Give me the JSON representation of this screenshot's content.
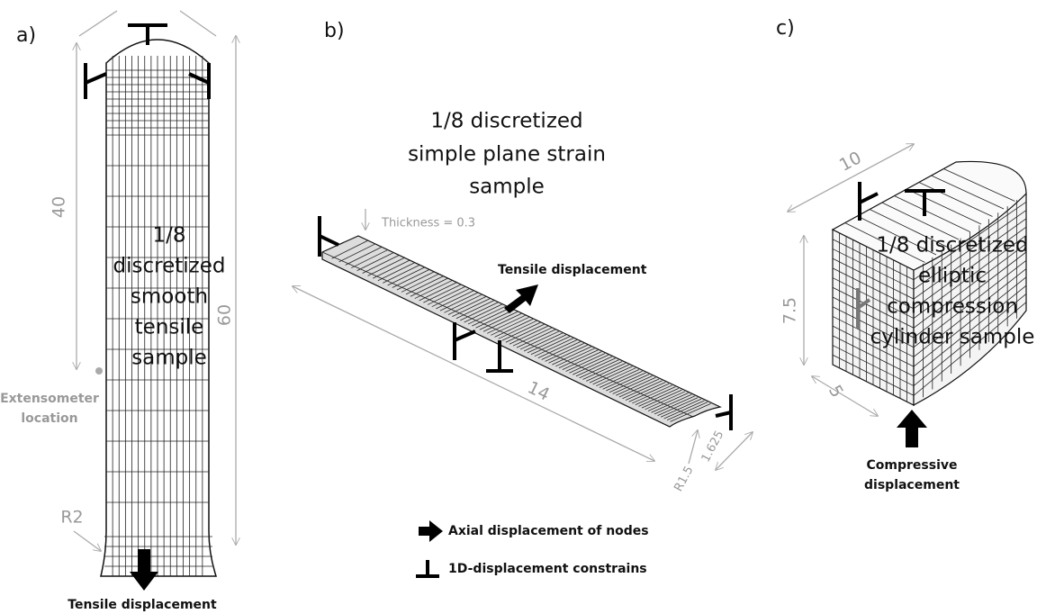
{
  "panels": [
    {
      "tag": "a)",
      "dimensions": [
        "40",
        "60"
      ],
      "label_lines": [
        "1/8",
        "discretized",
        "smooth",
        "tensile",
        "sample"
      ],
      "extensometer_lines": [
        "Extensometer",
        "location"
      ],
      "radius": "R2",
      "load": "Tensile displacement"
    },
    {
      "tag": "b)",
      "label_lines": [
        "1/8 discretized",
        "simple plane strain",
        "sample"
      ],
      "thickness": "Thickness = 0.3",
      "load": "Tensile displacement",
      "dimensions": [
        "14",
        "1.625"
      ],
      "radius": "R1.5"
    },
    {
      "tag": "c)",
      "dimensions": [
        "10",
        "7.5",
        "5"
      ],
      "label_lines": [
        "1/8 discretized",
        "elliptic",
        "compression",
        "cylinder sample"
      ],
      "load_lines": [
        "Compressive",
        "displacement"
      ]
    }
  ],
  "legend": {
    "arrow": "Axial displacement of nodes",
    "constraint": "1D-displacement constrains"
  }
}
